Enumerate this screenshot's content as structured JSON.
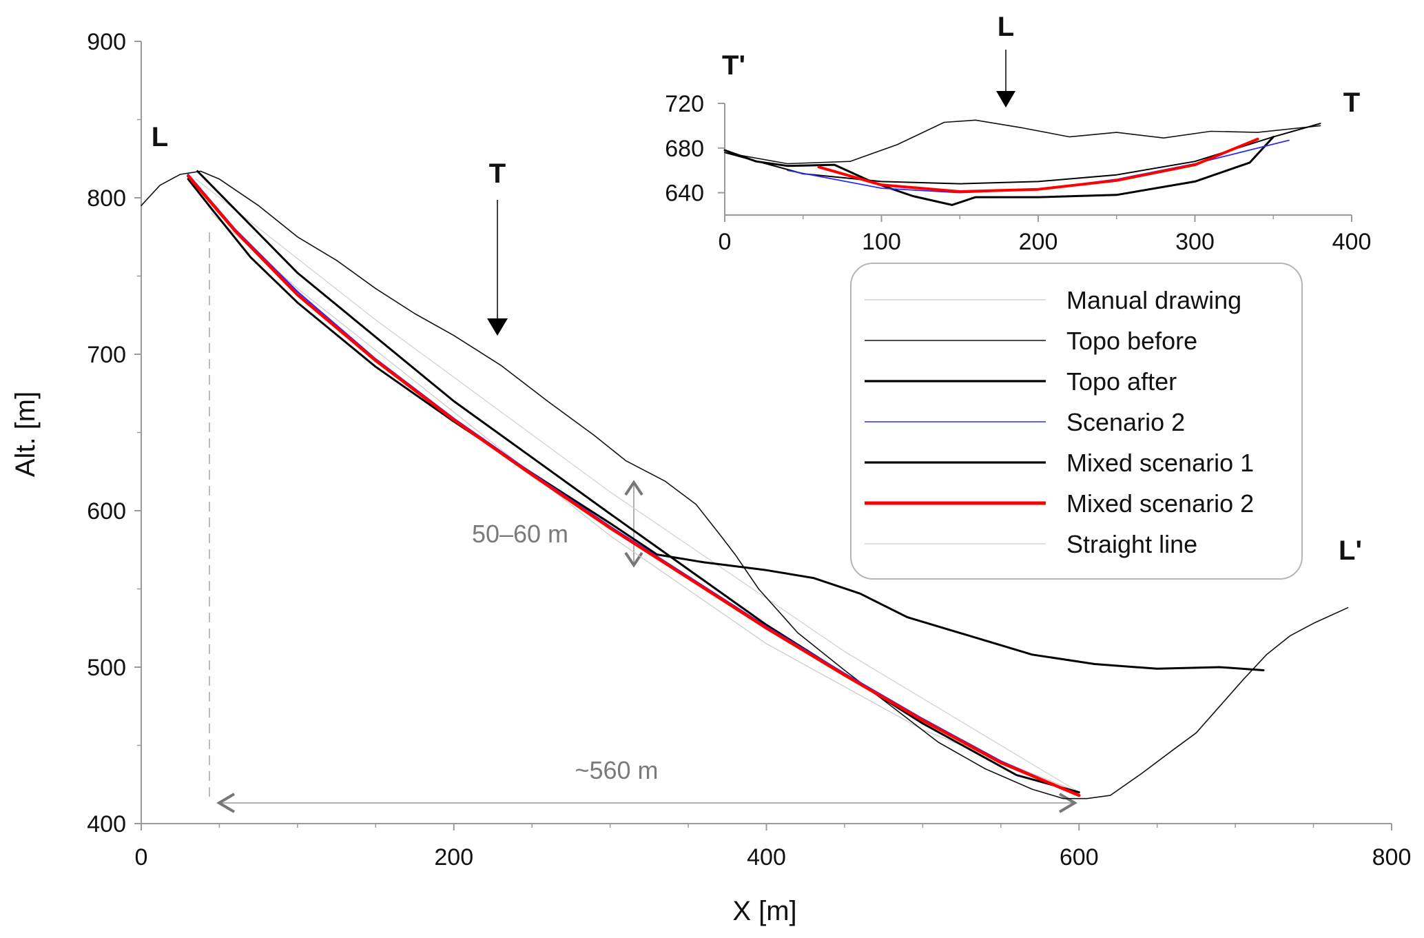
{
  "chart_data": [
    {
      "type": "line",
      "id": "main",
      "xlabel": "X [m]",
      "ylabel": "Alt. [m]",
      "xlim": [
        0,
        800
      ],
      "ylim": [
        400,
        900
      ],
      "xticks": [
        0,
        200,
        400,
        600,
        800
      ],
      "yticks": [
        400,
        500,
        600,
        700,
        800,
        900
      ],
      "grid": false,
      "annotations": {
        "profile_start": "L",
        "profile_end": "L'",
        "section_marker": "T",
        "thickness": "50–60 m",
        "length": "~560 m"
      },
      "series": [
        {
          "name": "Manual drawing",
          "color": "#c8c8c8",
          "width": 1.2,
          "x": [
            45,
            100,
            200,
            300,
            400,
            500,
            600
          ],
          "y": [
            790,
            742,
            663,
            584,
            515,
            460,
            420
          ]
        },
        {
          "name": "Straight line",
          "color": "#cfcfcf",
          "width": 1.2,
          "x": [
            35,
            150,
            300,
            450,
            600
          ],
          "y": [
            812,
            722,
            612,
            510,
            420
          ]
        },
        {
          "name": "Topo before",
          "color": "#111111",
          "width": 1.6,
          "x": [
            0,
            12,
            25,
            38,
            50,
            75,
            100,
            125,
            150,
            175,
            200,
            230,
            260,
            290,
            310,
            335,
            355,
            370,
            380,
            395,
            420,
            450,
            480,
            510,
            540,
            570,
            590,
            605,
            620,
            640,
            660,
            675,
            690,
            705,
            720,
            735,
            750,
            772
          ],
          "y": [
            795,
            808,
            815,
            817,
            812,
            795,
            775,
            760,
            742,
            726,
            712,
            693,
            670,
            648,
            632,
            619,
            604,
            585,
            572,
            550,
            522,
            498,
            475,
            452,
            435,
            422,
            416,
            416,
            418,
            432,
            447,
            458,
            475,
            492,
            508,
            520,
            528,
            538
          ]
        },
        {
          "name": "Topo after",
          "color": "#000000",
          "width": 3.0,
          "x": [
            30,
            45,
            70,
            100,
            150,
            200,
            250,
            300,
            330,
            360,
            400,
            430,
            460,
            490,
            530,
            570,
            610,
            650,
            690,
            718
          ],
          "y": [
            812,
            793,
            762,
            733,
            692,
            657,
            624,
            592,
            572,
            567,
            562,
            557,
            547,
            532,
            520,
            508,
            502,
            499,
            500,
            498
          ]
        },
        {
          "name": "Mixed scenario 1",
          "color": "#000000",
          "width": 3.0,
          "x": [
            36,
            100,
            200,
            300,
            400,
            500,
            560,
            600
          ],
          "y": [
            817,
            752,
            670,
            598,
            527,
            464,
            431,
            420
          ]
        },
        {
          "name": "Scenario 2",
          "color": "#2a2aff",
          "width": 2.2,
          "x": [
            30,
            60,
            100,
            150,
            200,
            250,
            300,
            350,
            400,
            450,
            500,
            550,
            600
          ],
          "y": [
            815,
            780,
            740,
            697,
            659,
            624,
            590,
            558,
            526,
            496,
            467,
            440,
            418
          ]
        },
        {
          "name": "Mixed scenario 2",
          "color": "#ff0000",
          "width": 4.5,
          "x": [
            30,
            60,
            100,
            150,
            200,
            250,
            300,
            350,
            400,
            450,
            500,
            550,
            600
          ],
          "y": [
            814,
            779,
            738,
            696,
            658,
            623,
            589,
            557,
            525,
            495,
            466,
            439,
            418
          ]
        }
      ]
    },
    {
      "type": "line",
      "id": "inset",
      "xlim": [
        0,
        400
      ],
      "ylim": [
        620,
        720
      ],
      "xticks": [
        0,
        100,
        200,
        300,
        400
      ],
      "yticks": [
        640,
        680,
        720
      ],
      "grid": false,
      "annotations": {
        "section_start": "T'",
        "section_end": "T",
        "profile_marker": "L"
      },
      "series": [
        {
          "name": "Topo before",
          "color": "#111111",
          "width": 1.6,
          "x": [
            0,
            40,
            80,
            110,
            140,
            160,
            190,
            220,
            250,
            280,
            310,
            340,
            380
          ],
          "y": [
            676,
            666,
            668,
            683,
            703,
            705,
            698,
            690,
            694,
            689,
            695,
            694,
            700
          ]
        },
        {
          "name": "Topo after",
          "color": "#000000",
          "width": 3.0,
          "x": [
            0,
            20,
            40,
            70,
            95,
            120,
            145,
            160,
            200,
            250,
            300,
            335,
            350
          ],
          "y": [
            678,
            668,
            664,
            665,
            649,
            637,
            629,
            636,
            636,
            638,
            650,
            667,
            690
          ]
        },
        {
          "name": "Mixed scenario 1",
          "color": "#000000",
          "width": 2.0,
          "x": [
            0,
            50,
            100,
            150,
            200,
            250,
            300,
            350,
            380
          ],
          "y": [
            676,
            657,
            650,
            648,
            650,
            656,
            668,
            690,
            702
          ]
        },
        {
          "name": "Scenario 2",
          "color": "#2a2aff",
          "width": 1.8,
          "x": [
            40,
            100,
            150,
            200,
            250,
            300,
            360
          ],
          "y": [
            660,
            644,
            640,
            643,
            652,
            666,
            687
          ]
        },
        {
          "name": "Mixed scenario 2",
          "color": "#ff0000",
          "width": 4.0,
          "x": [
            60,
            100,
            150,
            200,
            250,
            300,
            340
          ],
          "y": [
            663,
            647,
            641,
            643,
            651,
            665,
            688
          ]
        }
      ]
    }
  ],
  "legend": {
    "placement": "right",
    "entries": [
      {
        "label": "Manual drawing",
        "color": "#c8c8c8"
      },
      {
        "label": "Topo before",
        "color": "#111111"
      },
      {
        "label": "Topo after",
        "color": "#000000"
      },
      {
        "label": "Scenario 2",
        "color": "#2a2aff"
      },
      {
        "label": "Mixed scenario 1",
        "color": "#000000"
      },
      {
        "label": "Mixed scenario 2",
        "color": "#ff0000"
      },
      {
        "label": "Straight line",
        "color": "#cfcfcf"
      }
    ]
  }
}
